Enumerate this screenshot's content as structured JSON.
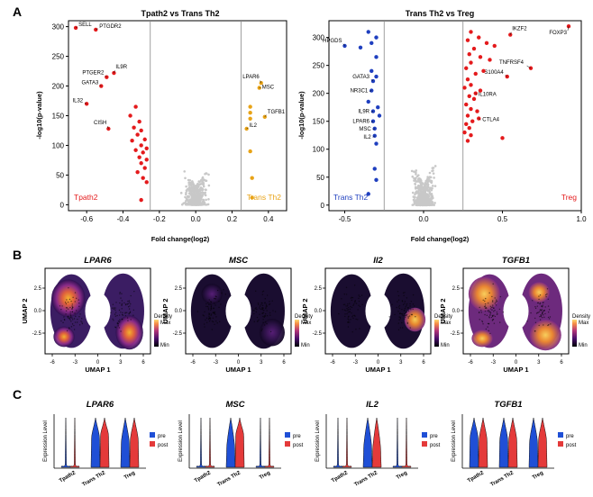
{
  "panel_labels": {
    "a": "A",
    "b": "B",
    "c": "C"
  },
  "volcano_left": {
    "title": "Tpath2 vs Trans Th2",
    "xlabel": "Fold change(log2)",
    "ylabel": "-log10(p-value)",
    "xticks": [
      "-0.6",
      "-0.4",
      "-0.2",
      "0.0",
      "0.2",
      "0.4"
    ],
    "yticks": [
      "0",
      "50",
      "100",
      "150",
      "200",
      "250",
      "300"
    ],
    "group_left": "Tpath2",
    "group_right": "Trans Th2",
    "group_left_color": "#e41a1c",
    "group_right_color": "#e8a317",
    "genes": [
      "SELL",
      "PTGDR2",
      "PTGER2",
      "IL9R",
      "GATA3",
      "IL32",
      "CISH",
      "LPAR6",
      "MSC",
      "TGFB1",
      "IL2"
    ]
  },
  "volcano_right": {
    "title": "Trans Th2 vs Treg",
    "xlabel": "Fold change(log2)",
    "ylabel": "-log10(p-value)",
    "xticks": [
      "-0.5",
      "0.0",
      "0.5",
      "1.0"
    ],
    "yticks": [
      "0",
      "50",
      "100",
      "150",
      "200",
      "250",
      "300"
    ],
    "group_left": "Trans Th2",
    "group_right": "Treg",
    "group_left_color": "#1f3fbf",
    "group_right_color": "#e41a1c",
    "genes": [
      "HPGDS",
      "GATA3",
      "NR3C1",
      "IL9R",
      "LPAR6",
      "MSC",
      "IL2",
      "IKZF2",
      "FOXP3",
      "TNFRSF4",
      "S100A4",
      "IL10RA",
      "CTLA4"
    ]
  },
  "umap": {
    "xlabel": "UMAP 1",
    "ylabel": "UMAP 2",
    "xticks": [
      "-6",
      "-3",
      "0",
      "3",
      "6"
    ],
    "yticks": [
      "2.5",
      "0.0",
      "-2.5"
    ],
    "legend_title": "Density",
    "legend_max": "Max",
    "legend_min": "Min",
    "panels": [
      "LPAR6",
      "MSC",
      "Il2",
      "TGFB1"
    ]
  },
  "violin": {
    "ylabel": "Expression Level",
    "groups": [
      "Tpath2",
      "Trans Th2",
      "Treg"
    ],
    "legend": [
      "pre",
      "post"
    ],
    "colors": {
      "pre": "#1f4fd6",
      "post": "#e43a3a"
    },
    "panels": [
      "LPAR6",
      "MSC",
      "IL2",
      "TGFB1"
    ]
  },
  "chart_data": [
    {
      "type": "scatter",
      "title": "Tpath2 vs Trans Th2",
      "xlabel": "Fold change(log2)",
      "ylabel": "-log10(p-value)",
      "xlim": [
        -0.7,
        0.5
      ],
      "ylim": [
        -10,
        310
      ],
      "thresholds_x": [
        -0.25,
        0.25
      ],
      "series": [
        {
          "name": "Tpath2",
          "color": "#e41a1c",
          "points": [
            {
              "x": -0.66,
              "y": 298,
              "label": "SELL"
            },
            {
              "x": -0.55,
              "y": 295,
              "label": "PTGDR2"
            },
            {
              "x": -0.49,
              "y": 215,
              "label": "PTGER2"
            },
            {
              "x": -0.45,
              "y": 222,
              "label": "IL9R"
            },
            {
              "x": -0.52,
              "y": 200,
              "label": "GATA3"
            },
            {
              "x": -0.6,
              "y": 170,
              "label": "IL32"
            },
            {
              "x": -0.48,
              "y": 128,
              "label": "CISH"
            },
            {
              "x": -0.33,
              "y": 165
            },
            {
              "x": -0.36,
              "y": 150
            },
            {
              "x": -0.31,
              "y": 140
            },
            {
              "x": -0.34,
              "y": 130
            },
            {
              "x": -0.3,
              "y": 125
            },
            {
              "x": -0.32,
              "y": 118
            },
            {
              "x": -0.28,
              "y": 110
            },
            {
              "x": -0.35,
              "y": 108
            },
            {
              "x": -0.3,
              "y": 100
            },
            {
              "x": -0.27,
              "y": 95
            },
            {
              "x": -0.33,
              "y": 92
            },
            {
              "x": -0.29,
              "y": 88
            },
            {
              "x": -0.31,
              "y": 80
            },
            {
              "x": -0.27,
              "y": 76
            },
            {
              "x": -0.3,
              "y": 70
            },
            {
              "x": -0.28,
              "y": 62
            },
            {
              "x": -0.32,
              "y": 55
            },
            {
              "x": -0.29,
              "y": 45
            },
            {
              "x": -0.27,
              "y": 38
            },
            {
              "x": -0.3,
              "y": 8
            }
          ]
        },
        {
          "name": "Trans Th2",
          "color": "#e8a317",
          "points": [
            {
              "x": 0.36,
              "y": 205,
              "label": "LPAR6"
            },
            {
              "x": 0.35,
              "y": 197,
              "label": "MSC"
            },
            {
              "x": 0.38,
              "y": 148,
              "label": "TGFB1"
            },
            {
              "x": 0.28,
              "y": 128,
              "label": "IL2"
            },
            {
              "x": 0.3,
              "y": 165
            },
            {
              "x": 0.3,
              "y": 155
            },
            {
              "x": 0.3,
              "y": 145
            },
            {
              "x": 0.3,
              "y": 90
            },
            {
              "x": 0.31,
              "y": 45
            },
            {
              "x": 0.31,
              "y": 12
            }
          ]
        }
      ]
    },
    {
      "type": "scatter",
      "title": "Trans Th2 vs Treg",
      "xlabel": "Fold change(log2)",
      "ylabel": "-log10(p-value)",
      "xlim": [
        -0.6,
        1.0
      ],
      "ylim": [
        -10,
        330
      ],
      "thresholds_x": [
        -0.25,
        0.25
      ],
      "series": [
        {
          "name": "Trans Th2",
          "color": "#1f3fbf",
          "points": [
            {
              "x": -0.5,
              "y": 285,
              "label": "HPGDS"
            },
            {
              "x": -0.32,
              "y": 222,
              "label": "GATA3"
            },
            {
              "x": -0.33,
              "y": 205,
              "label": "NR3C1"
            },
            {
              "x": -0.32,
              "y": 168,
              "label": "IL9R"
            },
            {
              "x": -0.32,
              "y": 150,
              "label": "LPAR6"
            },
            {
              "x": -0.31,
              "y": 137,
              "label": "MSC"
            },
            {
              "x": -0.31,
              "y": 124,
              "label": "IL2"
            },
            {
              "x": -0.35,
              "y": 310
            },
            {
              "x": -0.3,
              "y": 300
            },
            {
              "x": -0.33,
              "y": 290
            },
            {
              "x": -0.4,
              "y": 282
            },
            {
              "x": -0.3,
              "y": 265
            },
            {
              "x": -0.33,
              "y": 240
            },
            {
              "x": -0.3,
              "y": 230
            },
            {
              "x": -0.35,
              "y": 185
            },
            {
              "x": -0.29,
              "y": 175
            },
            {
              "x": -0.28,
              "y": 160
            },
            {
              "x": -0.3,
              "y": 110
            },
            {
              "x": -0.31,
              "y": 65
            },
            {
              "x": -0.3,
              "y": 45
            },
            {
              "x": -0.35,
              "y": 20
            }
          ]
        },
        {
          "name": "Treg",
          "color": "#e41a1c",
          "points": [
            {
              "x": 0.92,
              "y": 320,
              "label": "FOXP3"
            },
            {
              "x": 0.55,
              "y": 305,
              "label": "IKZF2"
            },
            {
              "x": 0.68,
              "y": 245,
              "label": "TNFRSF4"
            },
            {
              "x": 0.53,
              "y": 230,
              "label": "S100A4"
            },
            {
              "x": 0.33,
              "y": 200,
              "label": "IL10RA"
            },
            {
              "x": 0.35,
              "y": 155,
              "label": "CTLA4"
            },
            {
              "x": 0.3,
              "y": 310
            },
            {
              "x": 0.35,
              "y": 300
            },
            {
              "x": 0.28,
              "y": 295
            },
            {
              "x": 0.4,
              "y": 290
            },
            {
              "x": 0.32,
              "y": 280
            },
            {
              "x": 0.45,
              "y": 285
            },
            {
              "x": 0.29,
              "y": 270
            },
            {
              "x": 0.36,
              "y": 265
            },
            {
              "x": 0.42,
              "y": 260
            },
            {
              "x": 0.3,
              "y": 255
            },
            {
              "x": 0.27,
              "y": 245
            },
            {
              "x": 0.38,
              "y": 240
            },
            {
              "x": 0.33,
              "y": 235
            },
            {
              "x": 0.28,
              "y": 225
            },
            {
              "x": 0.3,
              "y": 215
            },
            {
              "x": 0.26,
              "y": 210
            },
            {
              "x": 0.36,
              "y": 205
            },
            {
              "x": 0.29,
              "y": 195
            },
            {
              "x": 0.32,
              "y": 190
            },
            {
              "x": 0.27,
              "y": 180
            },
            {
              "x": 0.3,
              "y": 172
            },
            {
              "x": 0.34,
              "y": 168
            },
            {
              "x": 0.28,
              "y": 160
            },
            {
              "x": 0.31,
              "y": 150
            },
            {
              "x": 0.27,
              "y": 145
            },
            {
              "x": 0.29,
              "y": 138
            },
            {
              "x": 0.26,
              "y": 130
            },
            {
              "x": 0.3,
              "y": 125
            },
            {
              "x": 0.5,
              "y": 120
            },
            {
              "x": 0.28,
              "y": 115
            }
          ]
        }
      ]
    }
  ]
}
